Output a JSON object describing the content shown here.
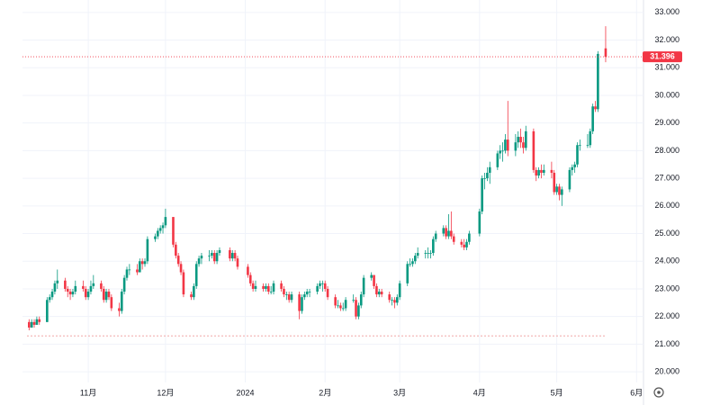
{
  "chart_data": {
    "type": "candlestick",
    "up_color": "#089981",
    "down_color": "#f23645",
    "xlim": [
      -34.3,
      215.7
    ],
    "ylim": [
      19.45,
      33.45
    ],
    "xticks": [
      {
        "value": 0,
        "label": "11月"
      },
      {
        "value": 30,
        "label": "12月"
      },
      {
        "value": 61,
        "label": "2024"
      },
      {
        "value": 92,
        "label": "2月"
      },
      {
        "value": 121,
        "label": "3月"
      },
      {
        "value": 152,
        "label": "4月"
      },
      {
        "value": 182,
        "label": "5月"
      },
      {
        "value": 213,
        "label": "6月"
      }
    ],
    "yticks": [
      {
        "value": 20,
        "label": "20.000"
      },
      {
        "value": 21,
        "label": "21.000"
      },
      {
        "value": 22,
        "label": "22.000"
      },
      {
        "value": 23,
        "label": "23.000"
      },
      {
        "value": 24,
        "label": "24.000"
      },
      {
        "value": 25,
        "label": "25.000"
      },
      {
        "value": 26,
        "label": "26.000"
      },
      {
        "value": 27,
        "label": "27.000"
      },
      {
        "value": 28,
        "label": "28.000"
      },
      {
        "value": 29,
        "label": "29.000"
      },
      {
        "value": 30,
        "label": "30.000"
      },
      {
        "value": 31,
        "label": "31.000"
      },
      {
        "value": 32,
        "label": "32.000"
      },
      {
        "value": 33,
        "label": "33.000"
      }
    ],
    "grid": true,
    "price_line": 31.396,
    "reference_line": 21.3,
    "candles": [
      [
        -23,
        21.8,
        21.9,
        21.5,
        21.6
      ],
      [
        -22,
        21.6,
        21.9,
        21.6,
        21.8
      ],
      [
        -21,
        21.8,
        21.9,
        21.6,
        21.7
      ],
      [
        -20,
        21.7,
        22.0,
        21.7,
        21.9
      ],
      [
        -19,
        21.9,
        22.0,
        21.7,
        21.8
      ],
      [
        -16,
        21.8,
        22.7,
        21.8,
        22.6
      ],
      [
        -15,
        22.6,
        22.8,
        22.5,
        22.7
      ],
      [
        -14,
        22.7,
        23.0,
        22.6,
        22.9
      ],
      [
        -13,
        22.9,
        23.3,
        22.8,
        23.2
      ],
      [
        -12,
        23.2,
        23.7,
        23.0,
        23.3
      ],
      [
        -9,
        23.3,
        23.4,
        22.9,
        23.0
      ],
      [
        -8,
        23.0,
        23.1,
        22.7,
        22.9
      ],
      [
        -7,
        22.9,
        23.0,
        22.6,
        22.8
      ],
      [
        -6,
        22.8,
        23.0,
        22.7,
        22.9
      ],
      [
        -5,
        22.9,
        23.3,
        22.8,
        23.1
      ],
      [
        -2,
        23.1,
        23.3,
        22.9,
        23.0
      ],
      [
        -1,
        23.0,
        23.1,
        22.6,
        22.7
      ],
      [
        0,
        22.7,
        23.0,
        22.6,
        22.9
      ],
      [
        1,
        22.9,
        23.3,
        22.8,
        23.1
      ],
      [
        2,
        23.1,
        23.5,
        23.0,
        23.2
      ],
      [
        5,
        23.2,
        23.3,
        22.9,
        23.0
      ],
      [
        6,
        23.0,
        23.1,
        22.5,
        22.6
      ],
      [
        7,
        22.6,
        23.0,
        22.5,
        22.9
      ],
      [
        8,
        22.9,
        23.0,
        22.6,
        22.7
      ],
      [
        9,
        22.7,
        22.8,
        22.2,
        22.3
      ],
      [
        12,
        22.3,
        22.5,
        22.0,
        22.2
      ],
      [
        13,
        22.2,
        23.0,
        22.1,
        22.9
      ],
      [
        14,
        22.9,
        23.5,
        22.8,
        23.4
      ],
      [
        15,
        23.4,
        23.8,
        23.3,
        23.7
      ],
      [
        16,
        23.7,
        23.9,
        23.5,
        23.7
      ],
      [
        19,
        23.7,
        23.9,
        23.5,
        23.6
      ],
      [
        20,
        23.6,
        24.1,
        23.6,
        24.0
      ],
      [
        21,
        24.0,
        24.1,
        23.7,
        23.9
      ],
      [
        22,
        23.9,
        24.1,
        23.8,
        24.0
      ],
      [
        23,
        24.0,
        24.9,
        23.9,
        24.8
      ],
      [
        26,
        24.8,
        25.0,
        24.7,
        24.9
      ],
      [
        27,
        24.9,
        25.2,
        24.8,
        25.1
      ],
      [
        28,
        25.1,
        25.3,
        25.0,
        25.2
      ],
      [
        29,
        25.2,
        25.4,
        25.0,
        25.3
      ],
      [
        30,
        25.3,
        25.9,
        25.2,
        25.6
      ],
      [
        33,
        25.6,
        25.6,
        24.5,
        24.6
      ],
      [
        34,
        24.6,
        24.7,
        24.1,
        24.2
      ],
      [
        35,
        24.2,
        24.3,
        23.8,
        23.9
      ],
      [
        36,
        23.9,
        24.0,
        23.5,
        23.6
      ],
      [
        37,
        23.6,
        23.7,
        22.7,
        22.8
      ],
      [
        40,
        22.8,
        22.9,
        22.6,
        22.7
      ],
      [
        41,
        22.7,
        23.2,
        22.6,
        23.1
      ],
      [
        42,
        23.1,
        24.0,
        23.0,
        23.9
      ],
      [
        43,
        23.9,
        24.2,
        23.8,
        24.1
      ],
      [
        44,
        24.1,
        24.3,
        23.9,
        24.2
      ],
      [
        47,
        24.2,
        24.4,
        24.0,
        24.2
      ],
      [
        48,
        24.2,
        24.4,
        24.1,
        24.3
      ],
      [
        49,
        24.3,
        24.4,
        23.9,
        24.0
      ],
      [
        50,
        24.0,
        24.4,
        23.9,
        24.3
      ],
      [
        51,
        24.3,
        24.5,
        24.2,
        24.4
      ],
      [
        55,
        24.4,
        24.5,
        24.0,
        24.1
      ],
      [
        56,
        24.1,
        24.4,
        24.0,
        24.3
      ],
      [
        57,
        24.3,
        24.4,
        24.0,
        24.1
      ],
      [
        58,
        24.1,
        24.2,
        23.7,
        23.8
      ],
      [
        62,
        23.8,
        23.9,
        23.4,
        23.5
      ],
      [
        63,
        23.5,
        23.6,
        23.1,
        23.2
      ],
      [
        64,
        23.2,
        23.3,
        22.9,
        23.0
      ],
      [
        65,
        23.0,
        23.3,
        22.9,
        23.1
      ],
      [
        68,
        23.1,
        23.2,
        22.9,
        23.0
      ],
      [
        69,
        23.0,
        23.2,
        22.9,
        23.1
      ],
      [
        70,
        23.1,
        23.2,
        22.8,
        22.9
      ],
      [
        71,
        22.9,
        23.1,
        22.8,
        22.9
      ],
      [
        72,
        22.9,
        23.3,
        22.8,
        23.2
      ],
      [
        75,
        23.2,
        23.3,
        22.9,
        23.0
      ],
      [
        76,
        23.0,
        23.1,
        22.7,
        22.8
      ],
      [
        77,
        22.8,
        22.9,
        22.6,
        22.8
      ],
      [
        78,
        22.8,
        22.9,
        22.5,
        22.6
      ],
      [
        79,
        22.6,
        22.9,
        22.5,
        22.8
      ],
      [
        82,
        22.8,
        22.9,
        21.9,
        22.2
      ],
      [
        83,
        22.2,
        22.8,
        22.1,
        22.7
      ],
      [
        84,
        22.7,
        22.9,
        22.6,
        22.8
      ],
      [
        85,
        22.8,
        23.0,
        22.7,
        22.9
      ],
      [
        86,
        22.9,
        23.0,
        22.7,
        22.9
      ],
      [
        89,
        22.9,
        23.2,
        22.8,
        23.1
      ],
      [
        90,
        23.1,
        23.3,
        23.0,
        23.2
      ],
      [
        91,
        23.2,
        23.3,
        22.9,
        23.2
      ],
      [
        92,
        23.2,
        23.3,
        22.9,
        23.0
      ],
      [
        93,
        23.0,
        23.1,
        22.6,
        22.7
      ],
      [
        96,
        22.7,
        22.8,
        22.3,
        22.4
      ],
      [
        97,
        22.4,
        22.6,
        22.3,
        22.4
      ],
      [
        98,
        22.4,
        22.5,
        22.2,
        22.3
      ],
      [
        99,
        22.3,
        22.5,
        22.2,
        22.3
      ],
      [
        100,
        22.3,
        22.7,
        22.2,
        22.6
      ],
      [
        103,
        22.6,
        22.8,
        22.5,
        22.6
      ],
      [
        104,
        22.6,
        22.7,
        21.9,
        22.0
      ],
      [
        105,
        22.0,
        22.5,
        21.9,
        22.4
      ],
      [
        106,
        22.4,
        22.9,
        22.3,
        22.8
      ],
      [
        107,
        22.8,
        23.5,
        22.7,
        23.4
      ],
      [
        110,
        23.4,
        23.6,
        23.3,
        23.5
      ],
      [
        111,
        23.5,
        23.5,
        23.0,
        23.1
      ],
      [
        112,
        23.1,
        23.2,
        22.7,
        22.8
      ],
      [
        113,
        22.8,
        23.0,
        22.7,
        22.9
      ],
      [
        114,
        22.9,
        23.0,
        22.7,
        22.8
      ],
      [
        117,
        22.8,
        22.9,
        22.5,
        22.6
      ],
      [
        118,
        22.6,
        22.7,
        22.4,
        22.6
      ],
      [
        119,
        22.6,
        22.7,
        22.3,
        22.5
      ],
      [
        120,
        22.5,
        22.8,
        22.4,
        22.7
      ],
      [
        121,
        22.7,
        23.3,
        22.6,
        23.2
      ],
      [
        124,
        23.2,
        24.0,
        23.1,
        23.9
      ],
      [
        125,
        23.9,
        24.1,
        23.8,
        23.9
      ],
      [
        126,
        23.9,
        24.1,
        23.8,
        24.0
      ],
      [
        127,
        24.0,
        24.3,
        23.9,
        24.2
      ],
      [
        128,
        24.2,
        24.5,
        24.1,
        24.3
      ],
      [
        131,
        24.3,
        24.4,
        24.1,
        24.3
      ],
      [
        132,
        24.3,
        24.5,
        24.1,
        24.3
      ],
      [
        133,
        24.3,
        24.4,
        24.1,
        24.3
      ],
      [
        134,
        24.3,
        24.9,
        24.2,
        24.8
      ],
      [
        135,
        24.8,
        25.1,
        24.7,
        25.0
      ],
      [
        138,
        25.0,
        25.3,
        24.9,
        25.2
      ],
      [
        139,
        25.2,
        25.3,
        24.8,
        24.9
      ],
      [
        140,
        24.9,
        25.7,
        24.8,
        25.1
      ],
      [
        141,
        25.1,
        25.8,
        24.8,
        24.9
      ],
      [
        142,
        24.9,
        25.0,
        24.6,
        24.7
      ],
      [
        145,
        24.7,
        24.8,
        24.5,
        24.6
      ],
      [
        146,
        24.6,
        24.8,
        24.4,
        24.5
      ],
      [
        147,
        24.5,
        24.8,
        24.4,
        24.7
      ],
      [
        148,
        24.7,
        25.1,
        24.6,
        25.0
      ],
      [
        152,
        25.0,
        25.9,
        24.9,
        25.8
      ],
      [
        153,
        25.8,
        27.1,
        25.7,
        27.0
      ],
      [
        154,
        27.0,
        27.2,
        26.6,
        27.0
      ],
      [
        155,
        27.0,
        27.4,
        26.9,
        27.2
      ],
      [
        156,
        27.2,
        27.6,
        26.8,
        27.4
      ],
      [
        159,
        27.4,
        28.0,
        27.3,
        27.9
      ],
      [
        160,
        27.9,
        28.2,
        27.7,
        28.0
      ],
      [
        161,
        28.0,
        28.3,
        27.6,
        28.0
      ],
      [
        162,
        28.0,
        28.6,
        27.9,
        28.4
      ],
      [
        163,
        28.4,
        29.8,
        27.8,
        28.0
      ],
      [
        166,
        28.0,
        28.6,
        27.8,
        28.3
      ],
      [
        167,
        28.3,
        28.7,
        28.1,
        28.5
      ],
      [
        168,
        28.5,
        28.8,
        28.1,
        28.3
      ],
      [
        169,
        28.3,
        28.5,
        27.9,
        28.1
      ],
      [
        170,
        28.1,
        28.9,
        28.0,
        28.7
      ],
      [
        173,
        28.7,
        28.8,
        27.2,
        27.3
      ],
      [
        174,
        27.3,
        27.4,
        26.9,
        27.1
      ],
      [
        175,
        27.1,
        27.4,
        27.0,
        27.3
      ],
      [
        176,
        27.3,
        27.5,
        27.0,
        27.2
      ],
      [
        177,
        27.2,
        27.5,
        27.1,
        27.3
      ],
      [
        180,
        27.3,
        27.6,
        27.0,
        27.2
      ],
      [
        181,
        27.2,
        27.3,
        26.4,
        26.5
      ],
      [
        182,
        26.5,
        26.8,
        26.4,
        26.7
      ],
      [
        183,
        26.7,
        26.8,
        26.2,
        26.4
      ],
      [
        184,
        26.4,
        26.7,
        26.0,
        26.6
      ],
      [
        187,
        26.6,
        27.4,
        26.5,
        27.3
      ],
      [
        188,
        27.3,
        27.5,
        27.1,
        27.4
      ],
      [
        189,
        27.4,
        27.6,
        27.2,
        27.5
      ],
      [
        190,
        27.5,
        28.3,
        27.4,
        28.2
      ],
      [
        191,
        28.2,
        28.4,
        28.0,
        28.2
      ],
      [
        194,
        28.2,
        28.6,
        28.1,
        28.2
      ],
      [
        195,
        28.2,
        28.8,
        28.1,
        28.7
      ],
      [
        196,
        28.7,
        29.7,
        28.6,
        29.6
      ],
      [
        197,
        29.6,
        29.8,
        29.4,
        29.5
      ],
      [
        198,
        29.5,
        31.6,
        29.4,
        31.5
      ],
      [
        201,
        31.7,
        32.5,
        31.2,
        31.396
      ]
    ]
  }
}
